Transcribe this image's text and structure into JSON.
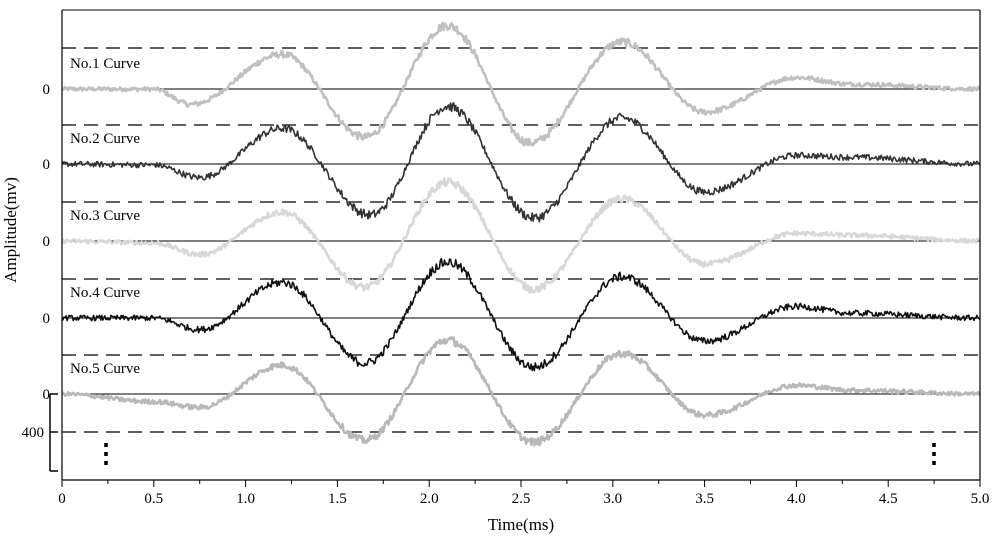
{
  "chart_data": {
    "type": "line",
    "xlabel": "Time(ms)",
    "ylabel": "Amplitude(mv)",
    "xlim": [
      0,
      5.0
    ],
    "x_ticks": [
      "0",
      "0.5",
      "1.0",
      "1.5",
      "2.0",
      "2.5",
      "3.0",
      "3.5",
      "4.0",
      "4.5",
      "5.0"
    ],
    "y_scale_label": "400",
    "grid": "horizontal solid baseline and dashed reference line per curve",
    "series": [
      {
        "name": "No.1 Curve",
        "baseline_label": "0",
        "color": "#c0c0c0",
        "envelope": [
          [
            0,
            0
          ],
          [
            0.5,
            -0.6
          ],
          [
            0.7,
            -80
          ],
          [
            1.2,
            180
          ],
          [
            1.65,
            -250
          ],
          [
            2.1,
            330
          ],
          [
            2.55,
            -280
          ],
          [
            3.05,
            245
          ],
          [
            3.5,
            -120
          ],
          [
            4.0,
            60
          ],
          [
            4.3,
            25
          ],
          [
            5.0,
            0
          ]
        ]
      },
      {
        "name": "No.2 Curve",
        "baseline_label": "0",
        "color": "#333333",
        "envelope": [
          [
            0,
            0
          ],
          [
            0.5,
            -5
          ],
          [
            0.75,
            -70
          ],
          [
            1.2,
            185
          ],
          [
            1.68,
            -265
          ],
          [
            2.1,
            300
          ],
          [
            2.57,
            -280
          ],
          [
            3.05,
            240
          ],
          [
            3.5,
            -145
          ],
          [
            4.0,
            45
          ],
          [
            4.3,
            35
          ],
          [
            5.0,
            0
          ]
        ]
      },
      {
        "name": "No.3 Curve",
        "baseline_label": "0",
        "color": "#d8d8d8",
        "envelope": [
          [
            0,
            0
          ],
          [
            0.5,
            -10
          ],
          [
            0.75,
            -70
          ],
          [
            1.2,
            150
          ],
          [
            1.65,
            -240
          ],
          [
            2.1,
            305
          ],
          [
            2.57,
            -250
          ],
          [
            3.05,
            220
          ],
          [
            3.5,
            -120
          ],
          [
            4.0,
            40
          ],
          [
            4.3,
            30
          ],
          [
            5.0,
            0
          ]
        ]
      },
      {
        "name": "No.4 Curve",
        "baseline_label": "0",
        "color": "#111111",
        "envelope": [
          [
            0,
            0
          ],
          [
            0.5,
            0
          ],
          [
            0.75,
            -60
          ],
          [
            1.2,
            185
          ],
          [
            1.65,
            -235
          ],
          [
            2.1,
            290
          ],
          [
            2.57,
            -255
          ],
          [
            3.05,
            215
          ],
          [
            3.5,
            -120
          ],
          [
            4.0,
            60
          ],
          [
            4.3,
            25
          ],
          [
            5.0,
            0
          ]
        ]
      },
      {
        "name": "No.5 Curve",
        "baseline_label": "0",
        "color": "#b8b8b8",
        "envelope": [
          [
            0,
            0
          ],
          [
            0.5,
            -40
          ],
          [
            0.75,
            -70
          ],
          [
            1.2,
            150
          ],
          [
            1.65,
            -240
          ],
          [
            2.1,
            280
          ],
          [
            2.57,
            -250
          ],
          [
            3.05,
            210
          ],
          [
            3.5,
            -110
          ],
          [
            4.0,
            45
          ],
          [
            4.3,
            20
          ],
          [
            5.0,
            0
          ]
        ]
      }
    ]
  },
  "ellipsis": "⋮"
}
